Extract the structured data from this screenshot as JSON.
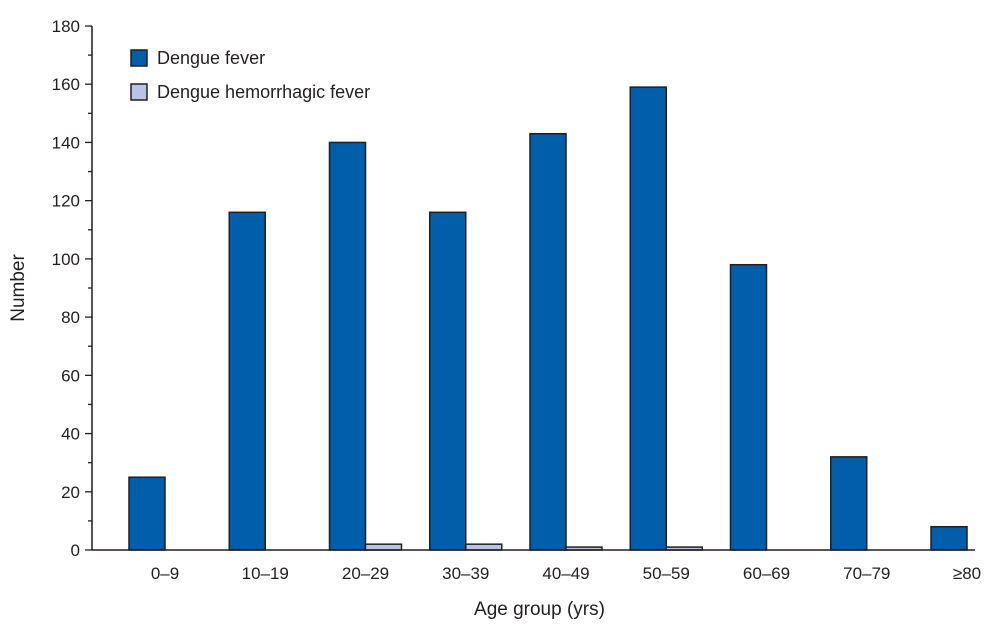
{
  "chart_data": {
    "type": "bar",
    "xlabel": "Age group (yrs)",
    "ylabel": "Number",
    "ylim": [
      0,
      180
    ],
    "y_major_ticks": [
      0,
      20,
      40,
      60,
      80,
      100,
      120,
      140,
      160,
      180
    ],
    "y_minor_step": 10,
    "grid": false,
    "legend_position": "top-left",
    "categories": [
      "0–9",
      "10–19",
      "20–29",
      "30–39",
      "40–49",
      "50–59",
      "60–69",
      "70–79",
      "≥80"
    ],
    "series": [
      {
        "name": "Dengue fever",
        "color": "#005eaa",
        "values": [
          25,
          116,
          140,
          116,
          143,
          159,
          98,
          32,
          8
        ]
      },
      {
        "name": "Dengue hemorrhagic fever",
        "color": "#b9c3e6",
        "values": [
          0,
          0,
          2,
          2,
          1,
          1,
          0,
          0,
          0
        ]
      }
    ]
  }
}
